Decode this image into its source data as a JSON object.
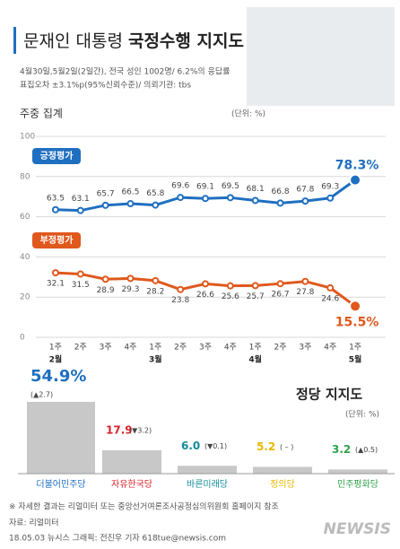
{
  "header": {
    "title": [
      "문재인 대통령",
      "국정수행 지지도"
    ],
    "subtitle": [
      "4월30일,5월2일(2일간), 전국 성인 1002명/ 6.2%의 응답률",
      "표집오차 ±3.1%p(95%신뢰수준)/ 의뢰기관: tbs"
    ]
  },
  "chart_data": [
    {
      "type": "line",
      "title": "주중 집계",
      "unit": "(단위: %)",
      "categories": [
        "1주",
        "2주",
        "3주",
        "4주",
        "1주",
        "2주",
        "3주",
        "4주",
        "1주",
        "2주",
        "3주",
        "4주",
        "1주"
      ],
      "months": [
        "2월",
        null,
        null,
        null,
        "3월",
        null,
        null,
        null,
        "4월",
        null,
        null,
        null,
        "5월"
      ],
      "ylim": [
        0,
        100
      ],
      "yticks": [
        0,
        20,
        40,
        60,
        80,
        100
      ],
      "grid": true,
      "series": [
        {
          "name": "긍정평가",
          "color": "#1f6fc0",
          "values": [
            63.5,
            63.1,
            65.7,
            66.5,
            65.8,
            69.6,
            69.1,
            69.5,
            68.1,
            66.8,
            67.8,
            69.3,
            78.3
          ],
          "value_labels": [
            "63.5",
            "63.1",
            "65.7",
            "66.5",
            "65.8",
            "69.6",
            "69.1",
            "69.5",
            "68.1",
            "66.8",
            "67.8",
            "69.3",
            "78.3%"
          ]
        },
        {
          "name": "부정평가",
          "color": "#e0581c",
          "values": [
            32.1,
            31.5,
            28.9,
            29.3,
            28.2,
            23.8,
            26.6,
            25.6,
            25.7,
            26.7,
            27.8,
            24.6,
            15.5
          ],
          "value_labels": [
            "32.1",
            "31.5",
            "28.9",
            "29.3",
            "28.2",
            "23.8",
            "26.6",
            "25.6",
            "25.7",
            "26.7",
            "27.8",
            "24.6",
            "15.5%"
          ]
        }
      ]
    },
    {
      "type": "bar",
      "title": "정당 지지도",
      "unit": "(단위: %)",
      "categories": [
        "더불어민주당",
        "자유한국당",
        "바른미래당",
        "정의당",
        "민주평화당"
      ],
      "values": [
        54.9,
        17.9,
        6.0,
        5.2,
        3.2
      ],
      "value_labels": [
        "54.9%",
        "17.9",
        "6.0",
        "5.2",
        "3.2"
      ],
      "changes": [
        "(▲2.7)",
        "(▼3.2)",
        "(▼0.1)",
        "( – )",
        "(▲0.5)"
      ],
      "colors": [
        "#1f6fc0",
        "#d7232a",
        "#138a9a",
        "#e7b800",
        "#2ea24a"
      ],
      "color": "#c8c8c8"
    }
  ],
  "footer": {
    "note": "※ 자세한 결과는 리얼미터 또는 중앙선거여론조사공정심의위원회 홈페이지 참조",
    "source": "자료: 리얼미터",
    "credit": "18.05.03 뉴시스 그래픽: 전진우 기자 618tue@newsis.com",
    "logo": "NEWSIS"
  }
}
